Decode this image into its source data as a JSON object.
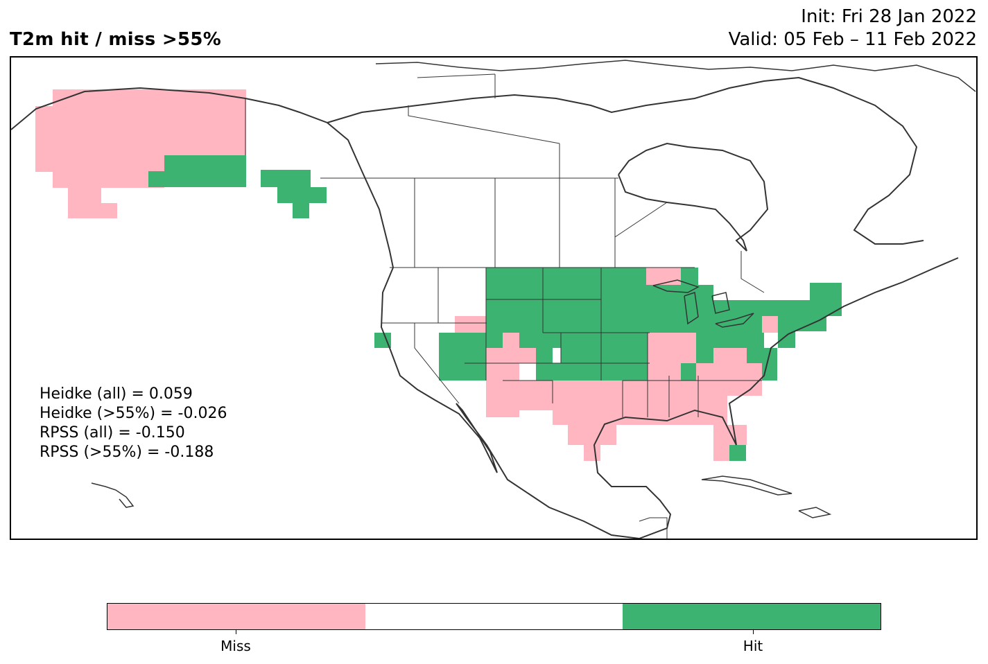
{
  "header": {
    "title": "T2m hit / miss  >55%",
    "init_line": "Init: Fri 28 Jan 2022",
    "valid_line": "Valid: 05 Feb – 11 Feb 2022"
  },
  "scores": {
    "heidke_all": "Heidke (all) = 0.059",
    "heidke_55": "Heidke (>55%) = -0.026",
    "rpss_all": "RPSS (all) = -0.150",
    "rpss_55": "RPSS (>55%) = -0.188"
  },
  "colorbar": {
    "miss_label": "Miss",
    "hit_label": "Hit",
    "colors": [
      "#ffb6c1",
      "#ffffff",
      "#3cb371"
    ]
  },
  "map": {
    "hit_color": "#3cb371",
    "miss_color": "#ffb6c1",
    "outline_color": "#333333",
    "region": "North America"
  }
}
